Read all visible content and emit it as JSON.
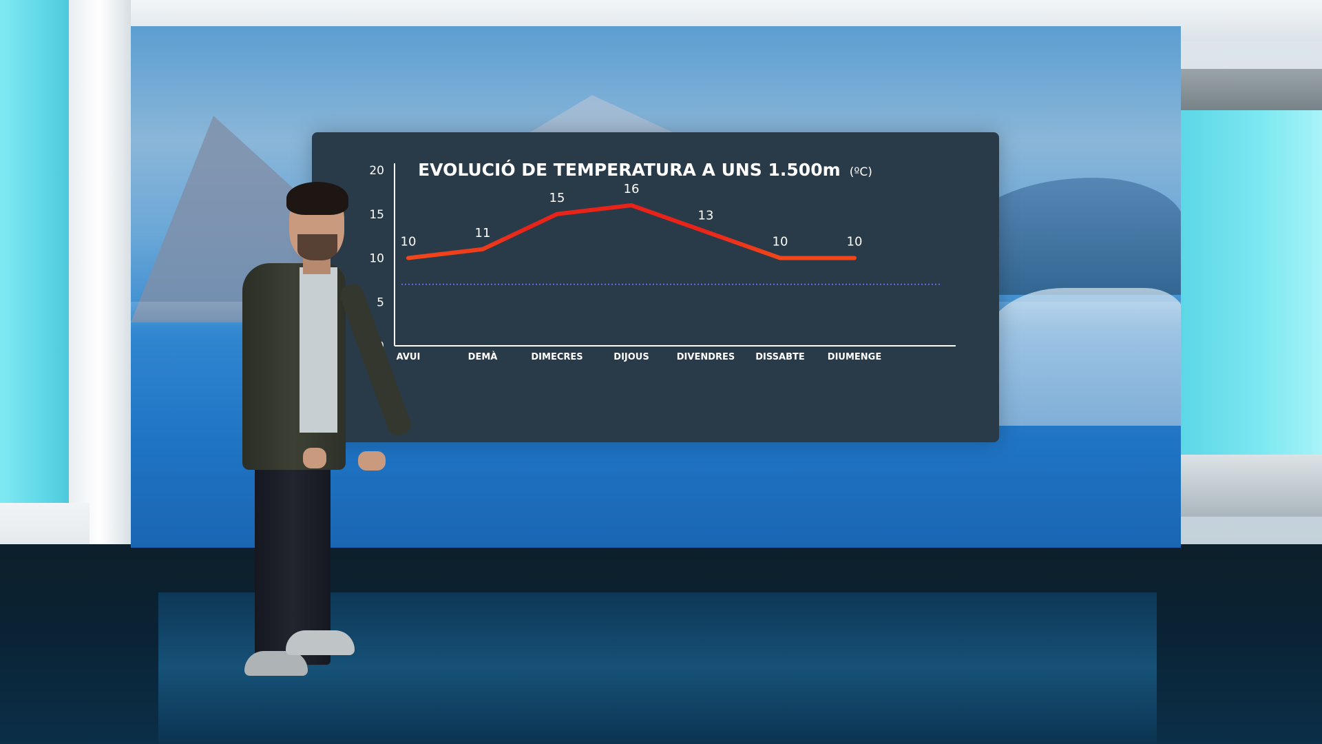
{
  "chart_data": {
    "type": "line",
    "title": "EVOLUCIÓ DE TEMPERATURA A UNS 1.500m",
    "title_unit": "(ºC)",
    "categories": [
      "AVUI",
      "DEMÀ",
      "DIMECRES",
      "DIJOUS",
      "DIVENDRES",
      "DISSABTE",
      "DIUMENGE"
    ],
    "values": [
      10,
      11,
      15,
      16,
      13,
      10,
      10
    ],
    "data_labels": [
      "10",
      "11",
      "15",
      "16",
      "13",
      "10",
      "10"
    ],
    "ylim": [
      0,
      20
    ],
    "yticks": [
      "0",
      "5",
      "10",
      "15",
      "20"
    ],
    "reference_line": {
      "y": 7,
      "style": "dotted"
    },
    "grid": false,
    "colors": {
      "panel": "#293a49",
      "line_low": "#ff7a1c",
      "line_high": "#e8231a",
      "reference": "#6b67e6",
      "axis": "#ffffff"
    }
  }
}
